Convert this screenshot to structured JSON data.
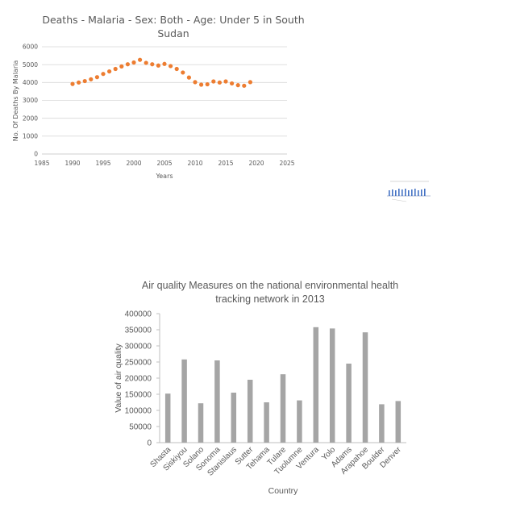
{
  "chart_data": [
    {
      "type": "scatter",
      "title_lines": [
        "Deaths - Malaria - Sex: Both - Age: Under 5 in South",
        "Sudan"
      ],
      "xlabel": "Years",
      "ylabel": "No. Of Deaths By Malaria",
      "xlim": [
        1985,
        2025
      ],
      "ylim": [
        0,
        6000
      ],
      "xticks": [
        "1985",
        "1990",
        "1995",
        "2000",
        "2005",
        "2010",
        "2015",
        "2020",
        "2025"
      ],
      "yticks": [
        "0",
        "1000",
        "2000",
        "3000",
        "4000",
        "5000",
        "6000"
      ],
      "grid": true,
      "legend": "none",
      "marker_color": "#ED7D31",
      "x": [
        1990,
        1991,
        1992,
        1993,
        1994,
        1995,
        1996,
        1997,
        1998,
        1999,
        2000,
        2001,
        2002,
        2003,
        2004,
        2005,
        2006,
        2007,
        2008,
        2009,
        2010,
        2011,
        2012,
        2013,
        2014,
        2015,
        2016,
        2017,
        2018,
        2019
      ],
      "y": [
        3920,
        4000,
        4080,
        4180,
        4300,
        4480,
        4620,
        4760,
        4900,
        5020,
        5120,
        5270,
        5100,
        5020,
        4950,
        5040,
        4920,
        4760,
        4560,
        4280,
        4020,
        3880,
        3900,
        4060,
        4000,
        4060,
        3950,
        3850,
        3820,
        4020
      ]
    },
    {
      "type": "bar",
      "title_lines": [
        "Air quality Measures on the national environmental health",
        "tracking network in 2013"
      ],
      "xlabel": "Country",
      "ylabel": "Value of  air quality",
      "ylim": [
        0,
        400000
      ],
      "yticks": [
        "0",
        "50000",
        "100000",
        "150000",
        "200000",
        "250000",
        "300000",
        "350000",
        "400000"
      ],
      "grid": false,
      "legend": "none",
      "bar_color": "#A5A5A5",
      "categories": [
        "Shasta",
        "Siskiyou",
        "Solano",
        "Sonoma",
        "Stanislaus",
        "Sutter",
        "Tehama",
        "Tulare",
        "Tuolumne",
        "Ventura",
        "Yolo",
        "Adams",
        "Arapahoe",
        "Boulder",
        "Denver"
      ],
      "values": [
        152000,
        258000,
        122000,
        255000,
        155000,
        195000,
        125000,
        212000,
        131000,
        358000,
        354000,
        245000,
        342000,
        119000,
        129000
      ]
    }
  ]
}
